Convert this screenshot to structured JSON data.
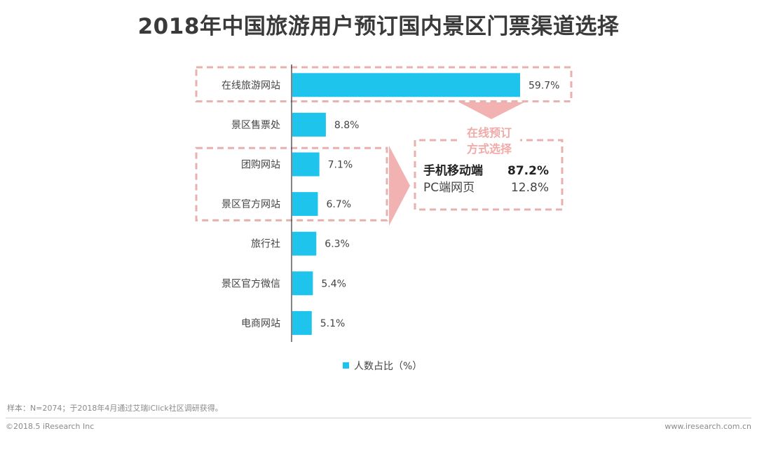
{
  "colors": {
    "bar": "#1ec4ec",
    "highlight_dash": "#e8b0ae",
    "arrow": "#f0aaa8",
    "axis": "#333333",
    "text": "#444444"
  },
  "chart_data": {
    "type": "bar",
    "orientation": "horizontal",
    "title": "2018年中国旅游用户预订国内景区门票渠道选择",
    "categories": [
      "在线旅游网站",
      "景区售票处",
      "团购网站",
      "景区官方网站",
      "旅行社",
      "景区官方微信",
      "电商网站"
    ],
    "series": [
      {
        "name": "人数占比（%）",
        "values": [
          59.7,
          8.8,
          7.1,
          6.7,
          6.3,
          5.4,
          5.1
        ]
      }
    ],
    "data_labels": [
      "59.7%",
      "8.8%",
      "7.1%",
      "6.7%",
      "6.3%",
      "5.4%",
      "5.1%"
    ],
    "xlim": [
      0,
      60
    ],
    "grid": false,
    "legend": {
      "position": "bottom",
      "label": "人数占比（%）"
    },
    "highlight_groups": [
      [
        "在线旅游网站"
      ],
      [
        "团购网站",
        "景区官方网站"
      ]
    ],
    "callout": {
      "title_line1": "在线预订",
      "title_line2": "方式选择",
      "rows": [
        {
          "label": "手机移动端",
          "value": "87.2%"
        },
        {
          "label": "PC端网页",
          "value": "12.8%"
        }
      ]
    }
  },
  "footer": {
    "note": "样本：N=2074；于2018年4月通过艾瑞iClick社区调研获得。",
    "copyright": "©2018.5 iResearch Inc",
    "site": "www.iresearch.com.cn"
  }
}
